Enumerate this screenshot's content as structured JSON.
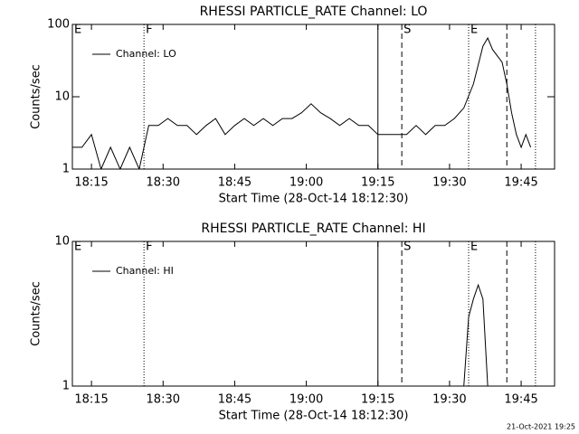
{
  "chart_data": [
    {
      "type": "line",
      "title": "RHESSI PARTICLE_RATE Channel: LO",
      "x_label": "Start Time (28-Oct-14 18:12:30)",
      "y_label": "Counts/sec",
      "x": [
        "18:11",
        "18:13",
        "18:15",
        "18:17",
        "18:19",
        "18:21",
        "18:23",
        "18:25",
        "18:27",
        "18:29",
        "18:31",
        "18:33",
        "18:35",
        "18:37",
        "18:39",
        "18:41",
        "18:43",
        "18:45",
        "18:47",
        "18:49",
        "18:51",
        "18:53",
        "18:55",
        "18:57",
        "18:59",
        "19:01",
        "19:03",
        "19:05",
        "19:07",
        "19:09",
        "19:11",
        "19:13",
        "19:15",
        "19:17",
        "19:19",
        "19:21",
        "19:23",
        "19:25",
        "19:27",
        "19:29",
        "19:31",
        "19:33",
        "19:35",
        "19:37",
        "19:38",
        "19:39",
        "19:41",
        "19:42",
        "19:43",
        "19:44",
        "19:45",
        "19:46",
        "19:47"
      ],
      "series": [
        {
          "name": "Channel: LO",
          "color": "#000000",
          "values": [
            2,
            2,
            3,
            1,
            2,
            1,
            2,
            1,
            4,
            4,
            5,
            4,
            4,
            3,
            4,
            5,
            3,
            4,
            5,
            4,
            5,
            4,
            5,
            5,
            6,
            8,
            6,
            5,
            4,
            5,
            4,
            4,
            3,
            3,
            3,
            3,
            4,
            3,
            4,
            4,
            5,
            7,
            15,
            50,
            65,
            45,
            30,
            15,
            6,
            3,
            2,
            3,
            2
          ]
        }
      ],
      "xlim": [
        "18:11",
        "19:52"
      ],
      "xticks": [
        "18:15",
        "18:30",
        "18:45",
        "19:00",
        "19:15",
        "19:30",
        "19:45"
      ],
      "ylim": [
        1,
        100
      ],
      "yticks": [
        1,
        10,
        100
      ],
      "log_y": true,
      "legend": "upper left",
      "vlines": [
        {
          "x": "18:26",
          "style": "dotted"
        },
        {
          "x": "19:15",
          "style": "solid"
        },
        {
          "x": "19:20",
          "style": "dashed"
        },
        {
          "x": "19:34",
          "style": "dotted"
        },
        {
          "x": "19:42",
          "style": "dashed"
        },
        {
          "x": "19:48",
          "style": "dotted"
        }
      ],
      "flags": [
        {
          "x": "18:11",
          "label": "E"
        },
        {
          "x": "18:26",
          "label": "F"
        },
        {
          "x": "19:20",
          "label": "S"
        },
        {
          "x": "19:34",
          "label": "E"
        }
      ]
    },
    {
      "type": "line",
      "title": "RHESSI PARTICLE_RATE Channel: HI",
      "x_label": "Start Time (28-Oct-14 18:12:30)",
      "y_label": "Counts/sec",
      "x": [
        "19:33",
        "19:34",
        "19:35",
        "19:36",
        "19:37",
        "19:38"
      ],
      "series": [
        {
          "name": "Channel: HI",
          "color": "#000000",
          "values": [
            1,
            3,
            4,
            5,
            4,
            1
          ]
        }
      ],
      "xlim": [
        "18:11",
        "19:52"
      ],
      "xticks": [
        "18:15",
        "18:30",
        "18:45",
        "19:00",
        "19:15",
        "19:30",
        "19:45"
      ],
      "ylim": [
        1,
        10
      ],
      "yticks": [
        1,
        10
      ],
      "log_y": true,
      "legend": "upper left",
      "vlines": [
        {
          "x": "18:26",
          "style": "dotted"
        },
        {
          "x": "19:15",
          "style": "solid"
        },
        {
          "x": "19:20",
          "style": "dashed"
        },
        {
          "x": "19:34",
          "style": "dotted"
        },
        {
          "x": "19:42",
          "style": "dashed"
        },
        {
          "x": "19:48",
          "style": "dotted"
        }
      ],
      "flags": [
        {
          "x": "18:11",
          "label": "E"
        },
        {
          "x": "18:26",
          "label": "F"
        },
        {
          "x": "19:20",
          "label": "S"
        },
        {
          "x": "19:34",
          "label": "E"
        }
      ]
    }
  ],
  "footer": "21-Oct-2021 19:25"
}
